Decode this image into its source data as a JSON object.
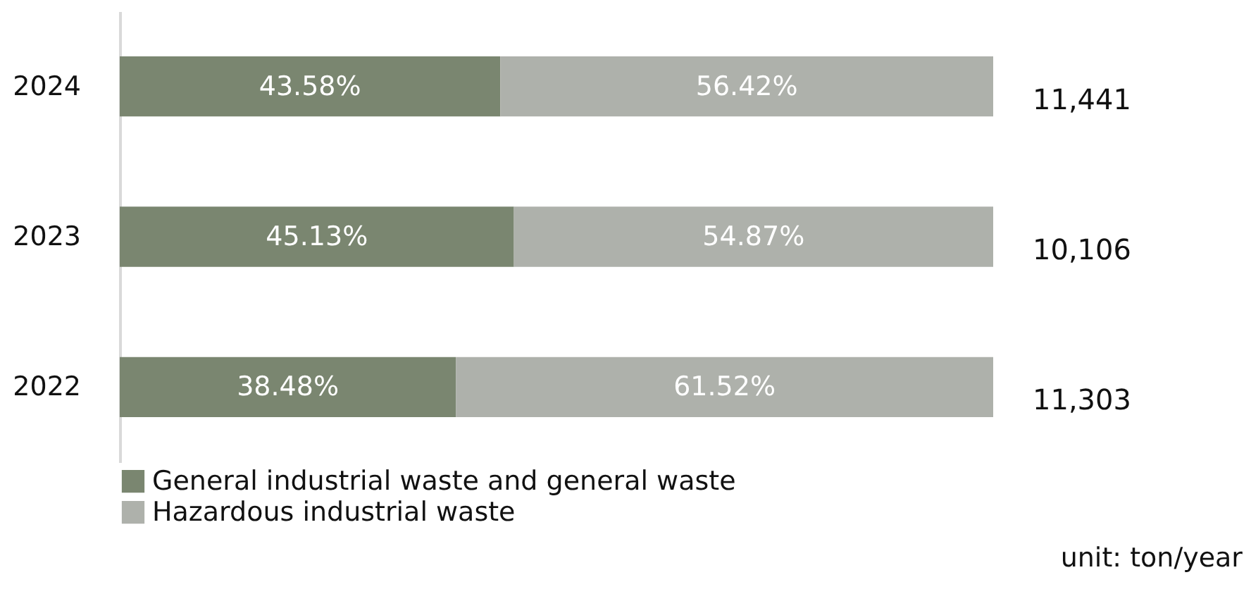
{
  "chart_data": {
    "type": "bar",
    "orientation": "horizontal",
    "stacked": true,
    "categories": [
      "2024",
      "2023",
      "2022"
    ],
    "series": [
      {
        "name": "General industrial waste and general waste",
        "color": "#7a8670",
        "values": [
          43.58,
          45.13,
          38.48
        ],
        "value_labels": [
          "43.58%",
          "45.13%",
          "38.48%"
        ]
      },
      {
        "name": "Hazardous industrial waste",
        "color": "#aeb1ab",
        "values": [
          56.42,
          54.87,
          61.52
        ],
        "value_labels": [
          "56.42%",
          "54.87%",
          "61.52%"
        ]
      }
    ],
    "annotations": [
      "11,441",
      "10,106",
      "11,303",
      "unit: ton/year"
    ],
    "legend": "bottom left",
    "grid": false
  }
}
